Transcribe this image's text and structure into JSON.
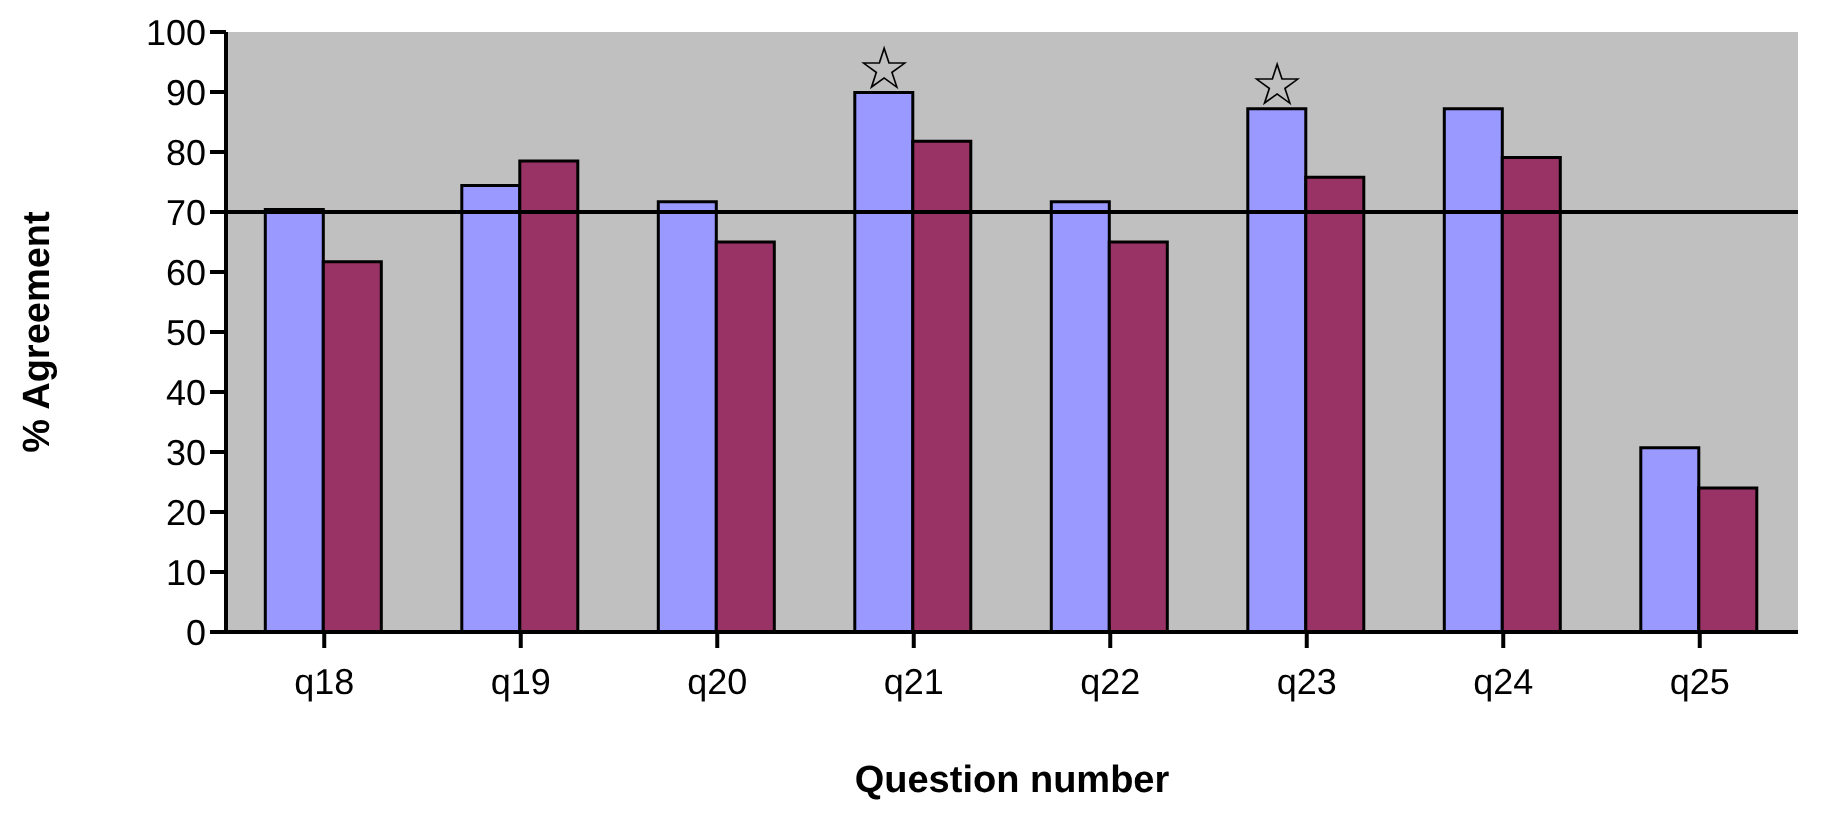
{
  "chart_data": {
    "type": "bar",
    "xlabel": "Question number",
    "ylabel": "% Agreement",
    "categories": [
      "q18",
      "q19",
      "q20",
      "q21",
      "q22",
      "q23",
      "q24",
      "q25"
    ],
    "series": [
      {
        "color": "#9999ff",
        "values": [
          70.4,
          74.4,
          71.7,
          89.9,
          71.7,
          87.2,
          87.2,
          30.7
        ]
      },
      {
        "color": "#993366",
        "values": [
          61.7,
          78.5,
          65,
          81.8,
          65,
          75.8,
          79.1,
          24
        ]
      }
    ],
    "ylim": [
      0,
      100
    ],
    "yticks": [
      0,
      10,
      20,
      30,
      40,
      50,
      60,
      70,
      80,
      90,
      100
    ],
    "grid": false,
    "legend": false,
    "ref_lines": [
      {
        "axis": "y",
        "value": 70,
        "color": "#000000"
      }
    ],
    "annotations": [
      {
        "text": "☆",
        "x": "q21",
        "y": 89.9
      },
      {
        "text": "☆",
        "x": "q23",
        "y": 87.2
      }
    ]
  }
}
